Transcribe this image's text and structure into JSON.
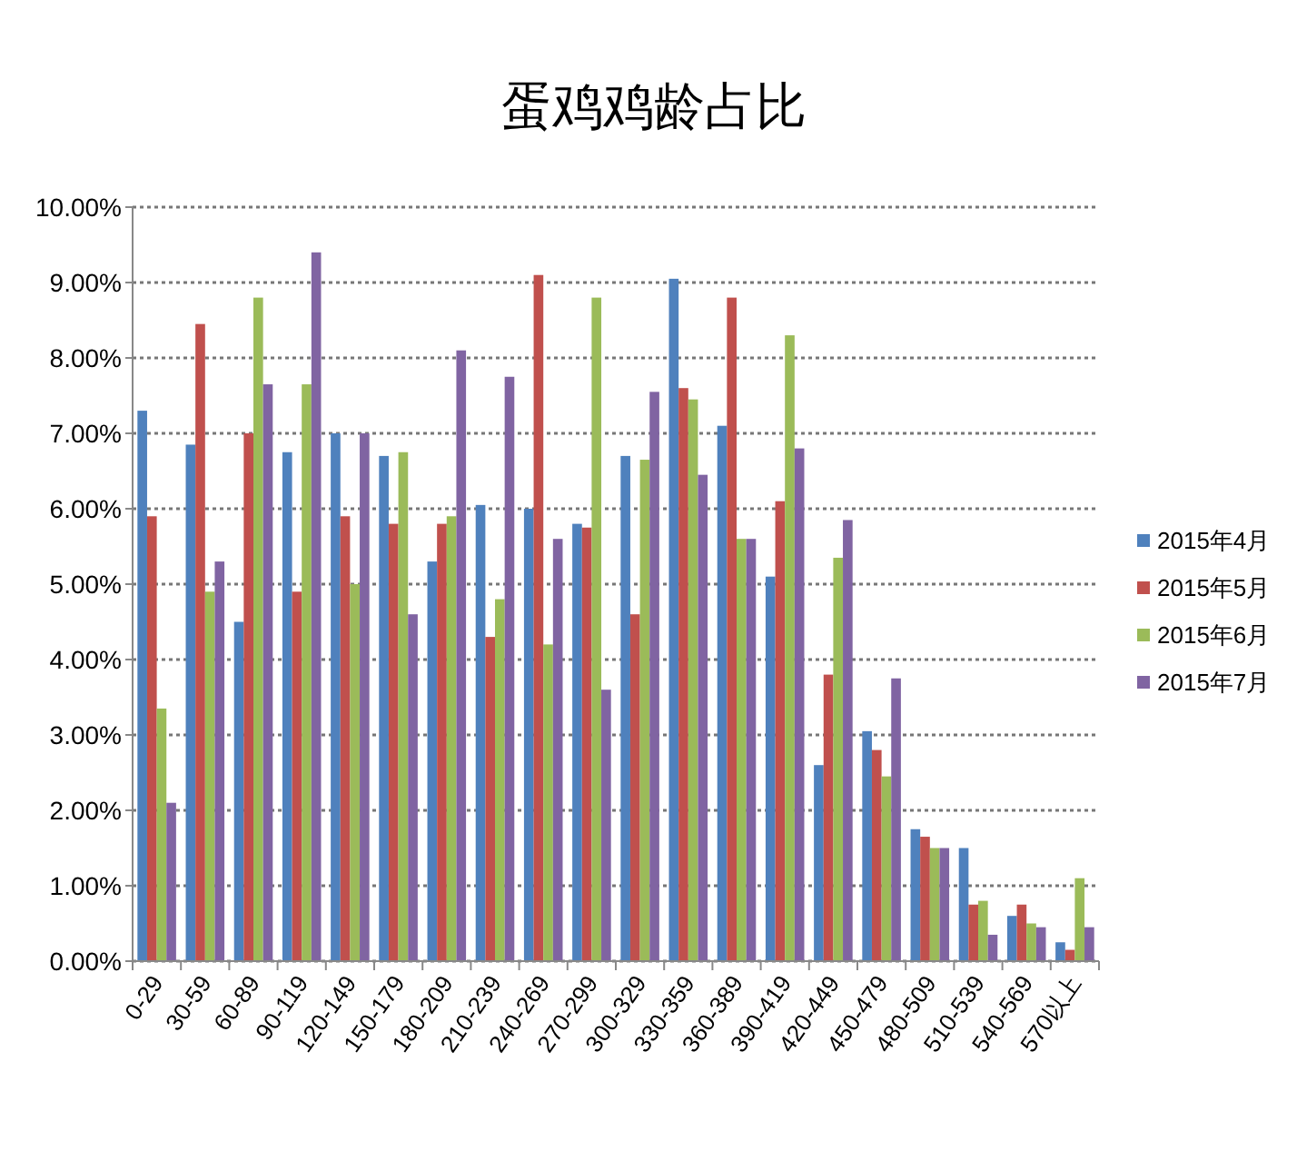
{
  "chart_data": {
    "type": "bar",
    "title": "蛋鸡鸡龄占比",
    "categories": [
      "0-29",
      "30-59",
      "60-89",
      "90-119",
      "120-149",
      "150-179",
      "180-209",
      "210-239",
      "240-269",
      "270-299",
      "300-329",
      "330-359",
      "360-389",
      "390-419",
      "420-449",
      "450-479",
      "480-509",
      "510-539",
      "540-569",
      "570以上"
    ],
    "series": [
      {
        "name": "2015年4月",
        "color": "#4f81bd",
        "values": [
          7.3,
          6.85,
          4.5,
          6.75,
          7.0,
          6.7,
          5.3,
          6.05,
          6.0,
          5.8,
          6.7,
          9.05,
          7.1,
          5.1,
          2.6,
          3.05,
          1.75,
          1.5,
          0.6,
          0.25
        ]
      },
      {
        "name": "2015年5月",
        "color": "#c0504d",
        "values": [
          5.9,
          8.45,
          7.0,
          4.9,
          5.9,
          5.8,
          5.8,
          4.3,
          9.1,
          5.75,
          4.6,
          7.6,
          8.8,
          6.1,
          3.8,
          2.8,
          1.65,
          0.75,
          0.75,
          0.15
        ]
      },
      {
        "name": "2015年6月",
        "color": "#9bbb59",
        "values": [
          3.35,
          4.9,
          8.8,
          7.65,
          5.0,
          6.75,
          5.9,
          4.8,
          4.2,
          8.8,
          6.65,
          7.45,
          5.6,
          8.3,
          5.35,
          2.45,
          1.5,
          0.8,
          0.5,
          1.1
        ]
      },
      {
        "name": "2015年7月",
        "color": "#8064a2",
        "values": [
          2.1,
          5.3,
          7.65,
          9.4,
          7.0,
          4.6,
          8.1,
          7.75,
          5.6,
          3.6,
          7.55,
          6.45,
          5.6,
          6.8,
          5.85,
          3.75,
          1.5,
          0.35,
          0.45,
          0.45
        ]
      }
    ],
    "ylim": [
      0,
      10
    ],
    "yticks": [
      {
        "value": 0,
        "label": "0.00%"
      },
      {
        "value": 1,
        "label": "1.00%"
      },
      {
        "value": 2,
        "label": "2.00%"
      },
      {
        "value": 3,
        "label": "3.00%"
      },
      {
        "value": 4,
        "label": "4.00%"
      },
      {
        "value": 5,
        "label": "5.00%"
      },
      {
        "value": 6,
        "label": "6.00%"
      },
      {
        "value": 7,
        "label": "7.00%"
      },
      {
        "value": 8,
        "label": "8.00%"
      },
      {
        "value": 9,
        "label": "9.00%"
      },
      {
        "value": 10,
        "label": "10.00%"
      }
    ],
    "grid": "y",
    "legend": "right"
  }
}
